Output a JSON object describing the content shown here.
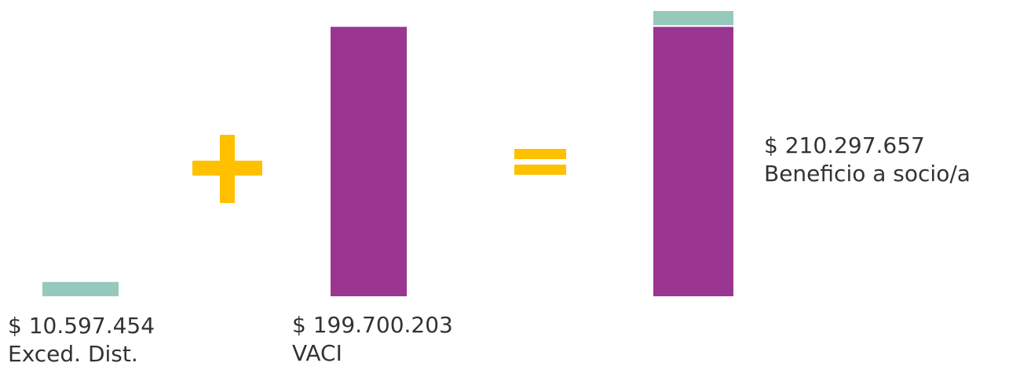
{
  "chart_data": {
    "type": "bar",
    "categories": [
      "Exced. Dist.",
      "VACI",
      "Beneficio a socio/a"
    ],
    "series": [
      {
        "name": "",
        "color": "#96c8bc",
        "values": [
          10597454,
          0,
          10597454
        ]
      },
      {
        "name": "",
        "color": "#9b3592",
        "values": [
          0,
          199700203,
          199700203
        ]
      }
    ],
    "value_labels": [
      "$ 10.597.454",
      "$ 199.700.203",
      "$ 210.297.657"
    ],
    "operators": [
      "+",
      "="
    ],
    "operator_color": "#ffc000",
    "ylim": [
      0,
      210297657
    ],
    "grid": false,
    "title": "",
    "xlabel": "",
    "ylabel": ""
  }
}
